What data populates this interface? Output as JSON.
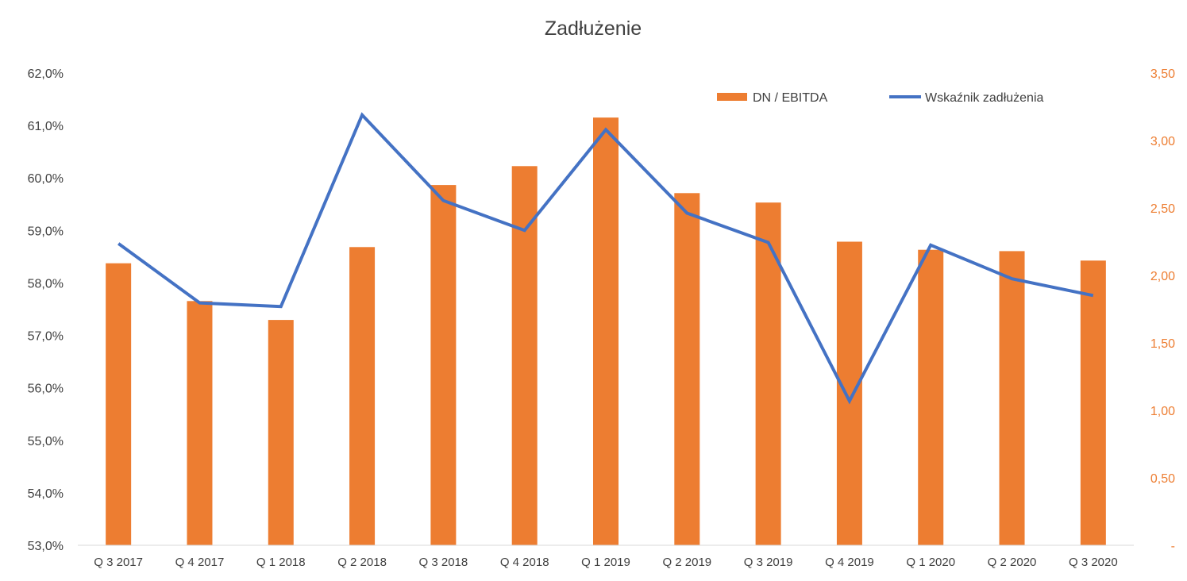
{
  "chart_data": {
    "type": "bar",
    "title": "Zadłużenie",
    "categories": [
      "Q 3 2017",
      "Q 4 2017",
      "Q 1 2018",
      "Q 2 2018",
      "Q 3 2018",
      "Q 4 2018",
      "Q 1 2019",
      "Q 2 2019",
      "Q 3 2019",
      "Q 4 2019",
      "Q 1 2020",
      "Q 2 2020",
      "Q 3 2020"
    ],
    "series": [
      {
        "name": "DN / EBITDA",
        "type": "bar",
        "axis": "right",
        "color": "#ED7D31",
        "values": [
          2.09,
          1.81,
          1.67,
          2.21,
          2.67,
          2.81,
          3.17,
          2.61,
          2.54,
          2.25,
          2.19,
          2.18,
          2.11
        ]
      },
      {
        "name": "Wskaźnik zadłużenia",
        "type": "line",
        "axis": "left",
        "color": "#4472C4",
        "values": [
          58.75,
          57.62,
          57.55,
          61.2,
          59.57,
          59.0,
          60.92,
          59.33,
          58.77,
          55.75,
          58.72,
          58.08,
          57.76
        ]
      }
    ],
    "y_left": {
      "ylim": [
        53.0,
        62.0
      ],
      "ticks": [
        "53,0%",
        "54,0%",
        "55,0%",
        "56,0%",
        "57,0%",
        "58,0%",
        "59,0%",
        "60,0%",
        "61,0%",
        "62,0%"
      ]
    },
    "y_right": {
      "ylim": [
        0,
        3.5
      ],
      "ticks": [
        "-",
        "0,50",
        "1,00",
        "1,50",
        "2,00",
        "2,50",
        "3,00",
        "3,50"
      ]
    },
    "legend_position": "top-right",
    "grid": false
  }
}
